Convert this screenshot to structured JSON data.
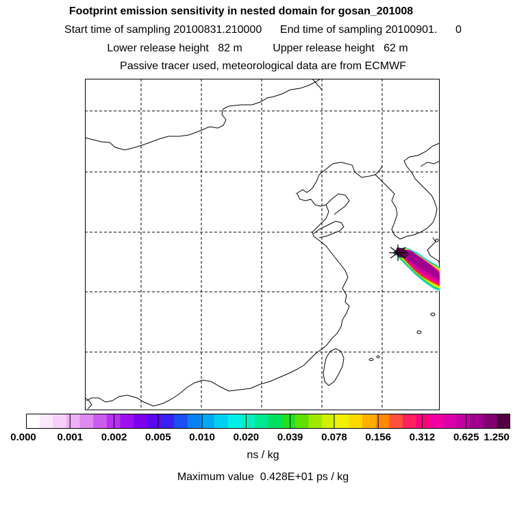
{
  "header": {
    "title": "Footprint emission sensitivity in nested domain for gosan_201008",
    "sampling": "Start time of sampling 20100831.210000      End time of sampling 20100901.      0",
    "release": "Lower release height   82 m          Upper release height   62 m",
    "tracer": "Passive tracer used, meteorological data are from ECMWF"
  },
  "legend": {
    "colors": [
      "#ffffff",
      "#fbe8fb",
      "#f5d0f8",
      "#eeb0f6",
      "#de8af0",
      "#cc5cf0",
      "#b830f0",
      "#9c10f0",
      "#7a00ee",
      "#5a08ee",
      "#3a20f0",
      "#1a50f0",
      "#0a80f0",
      "#00aaf0",
      "#00d0f0",
      "#00f0e8",
      "#00f0c0",
      "#00e890",
      "#00e060",
      "#20e020",
      "#60e000",
      "#a0e800",
      "#d0f000",
      "#f0f000",
      "#ffd800",
      "#ffb000",
      "#ff8800",
      "#ff5040",
      "#ff2060",
      "#ff0080",
      "#f000a0",
      "#d800a8",
      "#c000a0",
      "#a00090",
      "#800070",
      "#500040"
    ],
    "tick_labels": [
      "0.000",
      "0.001",
      "0.002",
      "0.005",
      "0.010",
      "0.020",
      "0.039",
      "0.078",
      "0.156",
      "0.312",
      "0.625",
      "1.250"
    ],
    "unit": "ns / kg",
    "max_value": "Maximum value  0.428E+01 ps / kg"
  }
}
